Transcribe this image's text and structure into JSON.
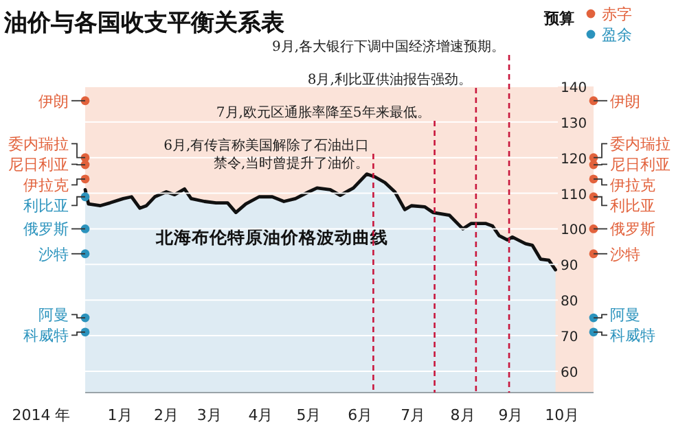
{
  "chart_data": {
    "type": "area",
    "title": "油价与各国收支平衡关系表",
    "xlabel": "2014 年",
    "legend_title": "预算",
    "legend": "top right",
    "grid": "y",
    "xlim": [
      "2014-01-01",
      "2014-11-04"
    ],
    "xticks": [
      {
        "value": "2014-01-22",
        "label": "1月"
      },
      {
        "value": "2014-02-19",
        "label": "2月"
      },
      {
        "value": "2014-03-17",
        "label": "3月"
      },
      {
        "value": "2014-04-17",
        "label": "4月"
      },
      {
        "value": "2014-05-16",
        "label": "5月"
      },
      {
        "value": "2014-06-16",
        "label": "6月"
      },
      {
        "value": "2014-07-18",
        "label": "7月"
      },
      {
        "value": "2014-08-17",
        "label": "8月"
      },
      {
        "value": "2014-09-15",
        "label": "9月"
      },
      {
        "value": "2014-10-16",
        "label": "10月"
      }
    ],
    "ylim": [
      54,
      140
    ],
    "yticks": [
      60,
      70,
      80,
      90,
      100,
      110,
      120,
      130,
      140
    ],
    "bands": [
      {
        "axis": "y",
        "from": 54,
        "to": 140,
        "color": "#fbe3d9"
      }
    ],
    "ref_lines": [
      {
        "axis": "x",
        "value": "2014-06-24",
        "label": "6月,有传言称美国解除了石油出口禁令,当时曾提升了油价。",
        "color": "#c8163c",
        "line_style": "dashed"
      },
      {
        "axis": "x",
        "value": "2014-07-31",
        "label": "7月,欧元区通胀率降至5年来最低。",
        "color": "#c8163c",
        "line_style": "dashed"
      },
      {
        "axis": "x",
        "value": "2014-08-25",
        "label": "8月,利比亚供油报告强劲。",
        "color": "#c8163c",
        "line_style": "dashed"
      },
      {
        "axis": "x",
        "value": "2014-09-14",
        "label": "9月,各大银行下调中国经济增速预期。",
        "color": "#c8163c",
        "line_style": "dashed"
      }
    ],
    "series": [
      {
        "name": "北海布伦特原油价格波动曲线",
        "color": "#deebf3",
        "x": [
          "2014-01-01",
          "2014-01-03",
          "2014-01-10",
          "2014-01-16",
          "2014-01-24",
          "2014-01-29",
          "2014-02-03",
          "2014-02-07",
          "2014-02-12",
          "2014-02-19",
          "2014-02-24",
          "2014-03-02",
          "2014-03-06",
          "2014-03-14",
          "2014-03-21",
          "2014-03-28",
          "2014-04-02",
          "2014-04-08",
          "2014-04-16",
          "2014-04-24",
          "2014-05-01",
          "2014-05-08",
          "2014-05-16",
          "2014-05-21",
          "2014-05-29",
          "2014-06-04",
          "2014-06-12",
          "2014-06-20",
          "2014-06-25",
          "2014-07-01",
          "2014-07-07",
          "2014-07-13",
          "2014-07-17",
          "2014-07-25",
          "2014-07-30",
          "2014-08-09",
          "2014-08-17",
          "2014-08-22",
          "2014-08-31",
          "2014-09-04",
          "2014-09-08",
          "2014-09-13",
          "2014-09-16",
          "2014-09-24",
          "2014-09-28",
          "2014-10-03",
          "2014-10-08",
          "2014-10-12"
        ],
        "values": [
          111,
          107,
          106.5,
          107.3,
          108.5,
          109,
          105.8,
          106.5,
          109,
          110.4,
          109.6,
          111.2,
          108.5,
          107.7,
          107.3,
          107.3,
          104.6,
          107,
          109,
          109,
          107.7,
          108.5,
          110.4,
          111.5,
          111,
          109.4,
          111.5,
          115.4,
          114.6,
          113,
          110.4,
          105.4,
          106.5,
          106.2,
          104.6,
          103.8,
          100,
          101.5,
          101.5,
          100.8,
          98.1,
          96.9,
          97.7,
          95.8,
          95.4,
          91.5,
          91.2,
          88.5
        ]
      },
      {
        "type": "scatter",
        "name": "赤字",
        "color": "#e2623c",
        "x": [
          "2014-01-01",
          "2014-01-01",
          "2014-01-01",
          "2014-01-01",
          "2014-11-04",
          "2014-11-04",
          "2014-11-04",
          "2014-11-04",
          "2014-11-04",
          "2014-11-04",
          "2014-11-04"
        ],
        "values": [
          136,
          120,
          118,
          114,
          136,
          120,
          118,
          114,
          109,
          100,
          93
        ]
      },
      {
        "type": "scatter",
        "name": "盈余",
        "color": "#2b93bd",
        "x": [
          "2014-01-01",
          "2014-01-01",
          "2014-01-01",
          "2014-01-01",
          "2014-01-01",
          "2014-11-04",
          "2014-11-04"
        ],
        "values": [
          109,
          100,
          93,
          75,
          71,
          75,
          71
        ]
      }
    ],
    "annotations": [
      {
        "text": "伊朗",
        "x": "2014-01-01",
        "y": 136
      },
      {
        "text": "委内瑞拉",
        "x": "2014-01-01",
        "y": 120
      },
      {
        "text": "尼日利亚",
        "x": "2014-01-01",
        "y": 118
      },
      {
        "text": "伊拉克",
        "x": "2014-01-01",
        "y": 114
      },
      {
        "text": "利比亚",
        "x": "2014-01-01",
        "y": 109
      },
      {
        "text": "俄罗斯",
        "x": "2014-01-01",
        "y": 100
      },
      {
        "text": "沙特",
        "x": "2014-01-01",
        "y": 93
      },
      {
        "text": "阿曼",
        "x": "2014-01-01",
        "y": 75
      },
      {
        "text": "科威特",
        "x": "2014-01-01",
        "y": 71
      },
      {
        "text": "伊朗",
        "x": "2014-11-04",
        "y": 136
      },
      {
        "text": "委内瑞拉",
        "x": "2014-11-04",
        "y": 120
      },
      {
        "text": "尼日利亚",
        "x": "2014-11-04",
        "y": 118
      },
      {
        "text": "伊拉克",
        "x": "2014-11-04",
        "y": 114
      },
      {
        "text": "利比亚",
        "x": "2014-11-04",
        "y": 109
      },
      {
        "text": "俄罗斯",
        "x": "2014-11-04",
        "y": 100
      },
      {
        "text": "沙特",
        "x": "2014-11-04",
        "y": 93
      },
      {
        "text": "阿曼",
        "x": "2014-11-04",
        "y": 75
      },
      {
        "text": "科威特",
        "x": "2014-11-04",
        "y": 71
      }
    ]
  }
}
